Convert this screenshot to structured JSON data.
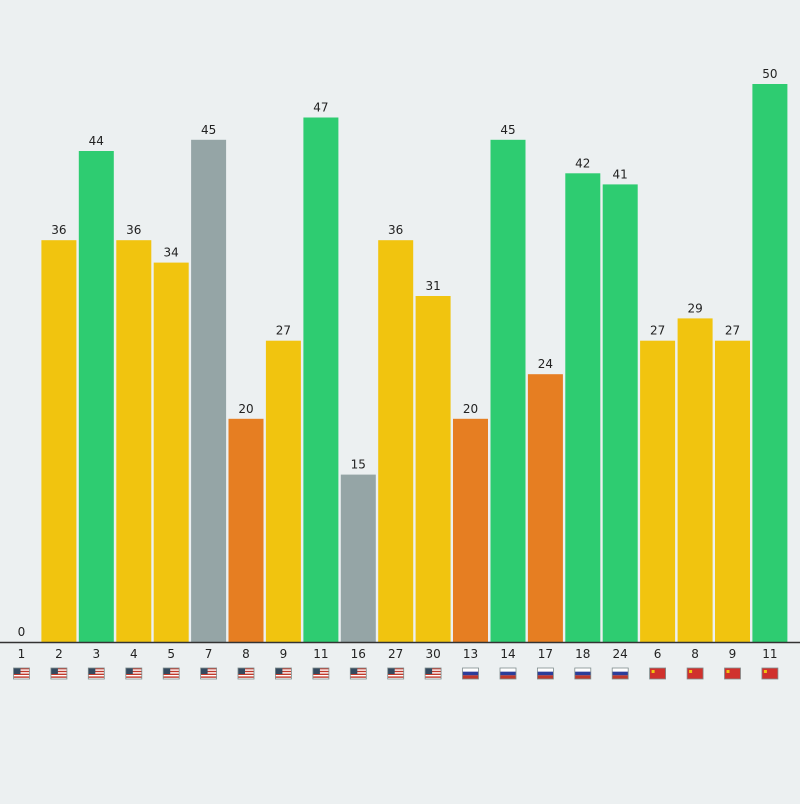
{
  "chart_data": {
    "type": "bar",
    "title": "",
    "xlabel": "",
    "ylabel": "",
    "ylim": [
      0,
      50
    ],
    "grid": false,
    "legend": "none",
    "categories": [
      "1",
      "2",
      "3",
      "4",
      "5",
      "7",
      "8",
      "9",
      "11",
      "16",
      "27",
      "30",
      "13",
      "14",
      "17",
      "18",
      "24",
      "6",
      "8",
      "9",
      "11"
    ],
    "values": [
      0,
      36,
      44,
      36,
      34,
      45,
      20,
      27,
      47,
      15,
      36,
      31,
      20,
      45,
      24,
      42,
      41,
      27,
      29,
      27,
      50
    ],
    "value_labels": [
      "0",
      "36",
      "44",
      "36",
      "34",
      "45",
      "20",
      "27",
      "47",
      "15",
      "36",
      "31",
      "20",
      "45",
      "24",
      "42",
      "41",
      "27",
      "29",
      "27",
      "50"
    ],
    "bar_colors": [
      "#f1c40f",
      "#f1c40f",
      "#2ecc71",
      "#f1c40f",
      "#f1c40f",
      "#95a5a6",
      "#e67e22",
      "#f1c40f",
      "#2ecc71",
      "#95a5a6",
      "#f1c40f",
      "#f1c40f",
      "#e67e22",
      "#2ecc71",
      "#e67e22",
      "#2ecc71",
      "#2ecc71",
      "#f1c40f",
      "#f1c40f",
      "#f1c40f",
      "#2ecc71"
    ],
    "flags": [
      "us-flag-icon",
      "us-flag-icon",
      "us-flag-icon",
      "us-flag-icon",
      "us-flag-icon",
      "us-flag-icon",
      "us-flag-icon",
      "us-flag-icon",
      "us-flag-icon",
      "us-flag-icon",
      "us-flag-icon",
      "us-flag-icon",
      "ru-flag-icon",
      "ru-flag-icon",
      "ru-flag-icon",
      "ru-flag-icon",
      "ru-flag-icon",
      "cn-flag-icon",
      "cn-flag-icon",
      "cn-flag-icon",
      "cn-flag-icon"
    ]
  }
}
